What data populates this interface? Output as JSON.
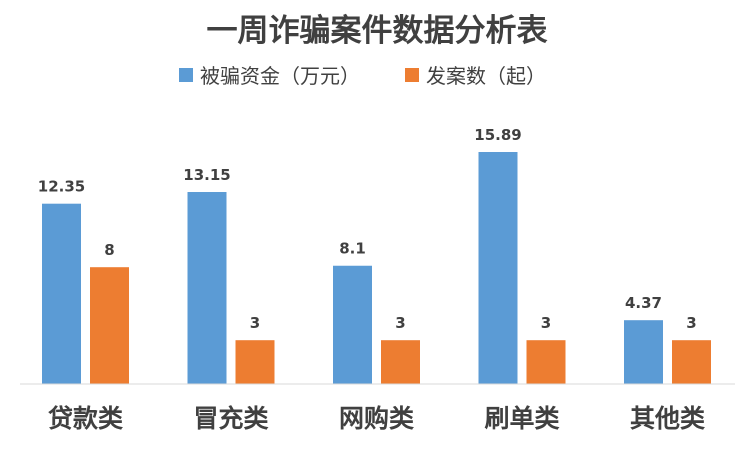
{
  "chart_data": {
    "type": "bar",
    "title": "一周诈骗案件数据分析表",
    "categories": [
      "贷款类",
      "冒充类",
      "网购类",
      "刷单类",
      "其他类"
    ],
    "series": [
      {
        "name": "被骗资金（万元）",
        "color": "#5B9BD5",
        "values": [
          12.35,
          13.15,
          8.1,
          15.89,
          4.37
        ]
      },
      {
        "name": "发案数（起）",
        "color": "#ED7D31",
        "values": [
          8,
          3,
          3,
          3,
          3
        ]
      }
    ],
    "value_labels": [
      [
        "12.35",
        "13.15",
        "8.1",
        "15.89",
        "4.37"
      ],
      [
        "8",
        "3",
        "3",
        "3",
        "3"
      ]
    ],
    "xlabel": "",
    "ylabel": "",
    "ylim": [
      0,
      18
    ],
    "grid": false,
    "legend_position": "top"
  }
}
